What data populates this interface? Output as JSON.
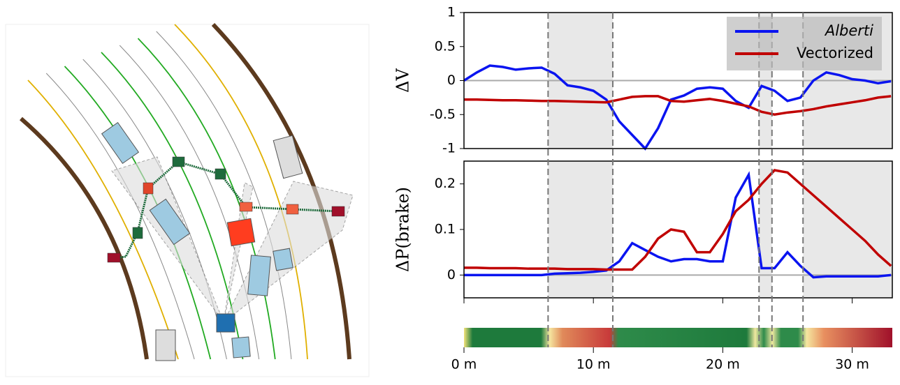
{
  "chart_data": [
    {
      "type": "line",
      "ylabel": "ΔV",
      "x": [
        0,
        1,
        2,
        3,
        4,
        5,
        6,
        7,
        8,
        9,
        10,
        11,
        12,
        13,
        14,
        15,
        16,
        17,
        18,
        19,
        20,
        21,
        22,
        23,
        24,
        25,
        26,
        27,
        28,
        29,
        30,
        31,
        32,
        33
      ],
      "xlim": [
        0,
        33.1
      ],
      "ylim": [
        -1,
        1
      ],
      "yticks": [
        -1,
        -0.5,
        0,
        0.5,
        1
      ],
      "hline": 0,
      "shaded": [
        [
          6.5,
          11.5
        ],
        [
          22.8,
          23.8
        ],
        [
          26.2,
          33.1
        ]
      ],
      "vlines": [
        6.5,
        11.5,
        22.8,
        23.8,
        26.2
      ],
      "series": [
        {
          "name": "Alberti",
          "color": "#0a14f0",
          "values": [
            0,
            0.12,
            0.22,
            0.2,
            0.16,
            0.18,
            0.19,
            0.1,
            -0.07,
            -0.1,
            -0.15,
            -0.28,
            -0.6,
            -0.8,
            -1,
            -0.7,
            -0.28,
            -0.22,
            -0.12,
            -0.1,
            -0.12,
            -0.3,
            -0.4,
            -0.08,
            -0.15,
            -0.3,
            -0.25,
            0,
            0.12,
            0.08,
            0.02,
            0,
            -0.04,
            -0.01
          ]
        },
        {
          "name": "Vectorized",
          "color": "#c00000",
          "values": [
            -0.28,
            -0.28,
            -0.285,
            -0.29,
            -0.29,
            -0.295,
            -0.3,
            -0.3,
            -0.305,
            -0.31,
            -0.315,
            -0.32,
            -0.28,
            -0.24,
            -0.23,
            -0.23,
            -0.3,
            -0.31,
            -0.29,
            -0.27,
            -0.3,
            -0.34,
            -0.38,
            -0.46,
            -0.5,
            -0.47,
            -0.45,
            -0.42,
            -0.38,
            -0.35,
            -0.32,
            -0.29,
            -0.25,
            -0.23
          ]
        }
      ]
    },
    {
      "type": "line",
      "ylabel": "ΔP(brake)",
      "x": [
        0,
        1,
        2,
        3,
        4,
        5,
        6,
        7,
        8,
        9,
        10,
        11,
        12,
        13,
        14,
        15,
        16,
        17,
        18,
        19,
        20,
        21,
        22,
        23,
        24,
        25,
        26,
        27,
        28,
        29,
        30,
        31,
        32,
        33
      ],
      "xlim": [
        0,
        33.1
      ],
      "ylim": [
        -0.05,
        0.25
      ],
      "yticks": [
        0,
        0.1,
        0.2
      ],
      "hline": 0,
      "xticks": [
        {
          "value": 0,
          "label": "0 m"
        },
        {
          "value": 10,
          "label": "10 m"
        },
        {
          "value": 20,
          "label": "20 m"
        },
        {
          "value": 30,
          "label": "30 m"
        }
      ],
      "shaded": [
        [
          6.5,
          11.5
        ],
        [
          22.8,
          23.8
        ],
        [
          26.2,
          33.1
        ]
      ],
      "series": [
        {
          "name": "Alberti",
          "color": "#0a14f0",
          "values": [
            0,
            0,
            0,
            0,
            0,
            0,
            0,
            0.003,
            0.004,
            0.005,
            0.007,
            0.01,
            0.03,
            0.07,
            0.055,
            0.04,
            0.03,
            0.035,
            0.035,
            0.03,
            0.03,
            0.17,
            0.22,
            0.015,
            0.015,
            0.05,
            0.02,
            -0.005,
            -0.003,
            -0.003,
            -0.003,
            -0.003,
            -0.003,
            0
          ]
        },
        {
          "name": "Vectorized",
          "color": "#c00000",
          "values": [
            0.016,
            0.016,
            0.015,
            0.015,
            0.015,
            0.014,
            0.014,
            0.014,
            0.013,
            0.013,
            0.013,
            0.012,
            0.012,
            0.012,
            0.04,
            0.08,
            0.1,
            0.095,
            0.05,
            0.05,
            0.09,
            0.14,
            0.165,
            0.2,
            0.23,
            0.225,
            0.2,
            0.175,
            0.15,
            0.125,
            0.1,
            0.075,
            0.045,
            0.02
          ]
        }
      ]
    }
  ]
}
